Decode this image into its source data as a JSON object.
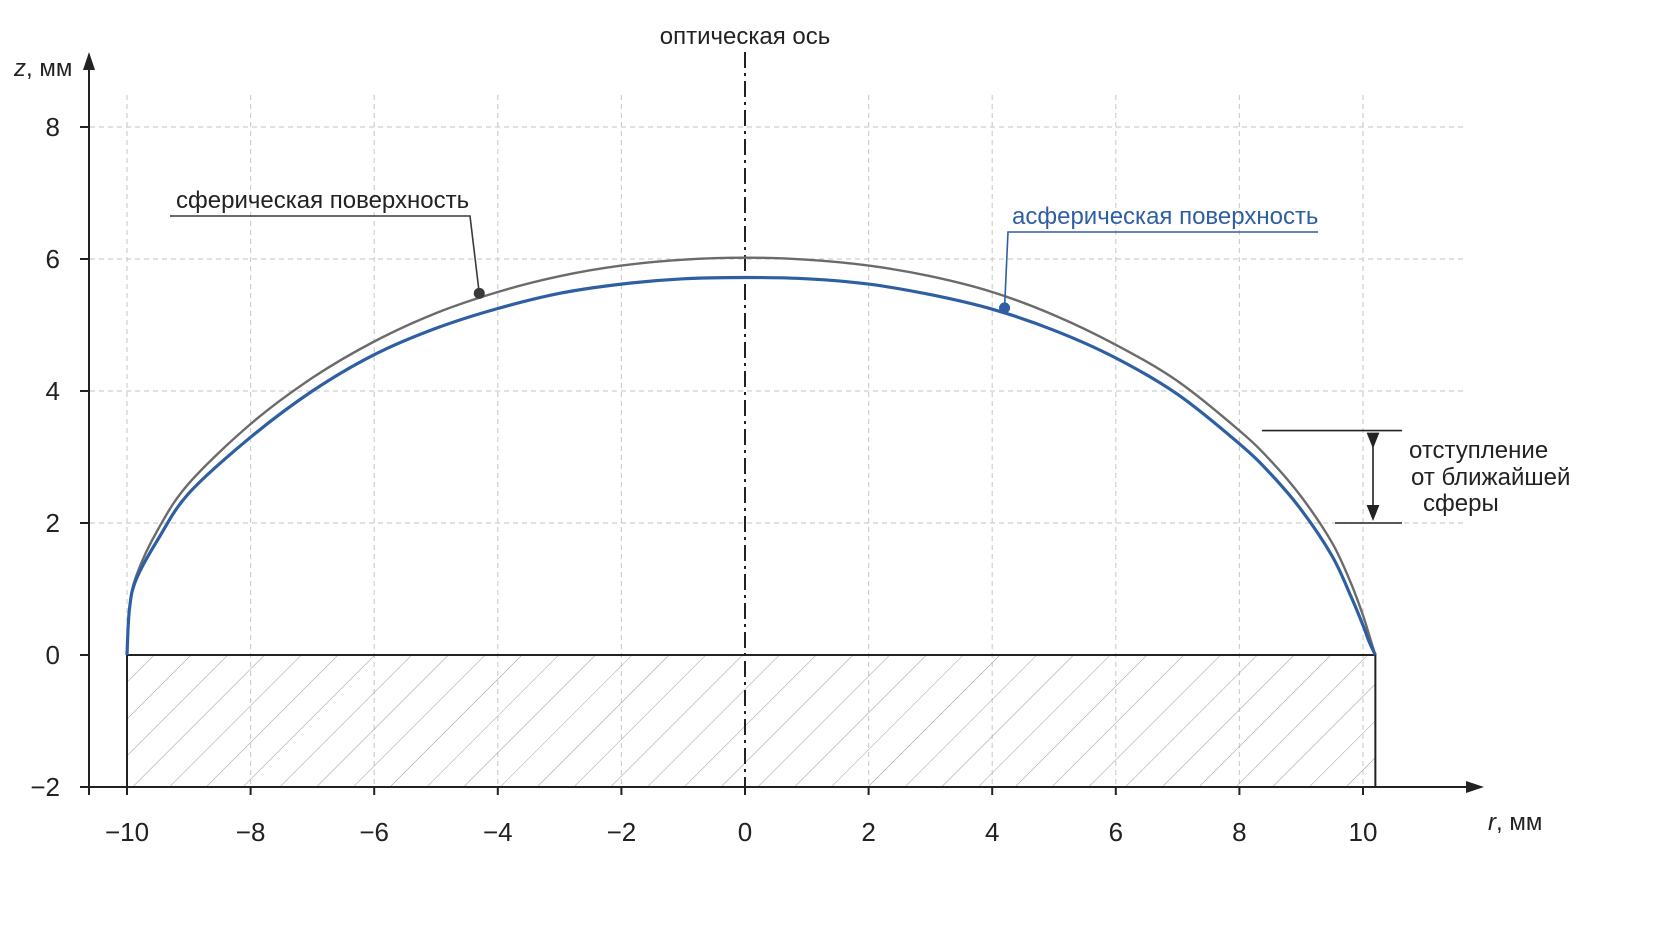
{
  "chart_data": {
    "type": "line",
    "xlabel_var": "r",
    "xlabel_unit": ", мм",
    "ylabel_var": "z",
    "ylabel_unit": ", мм",
    "xlim": [
      -10.4,
      11.6
    ],
    "ylim": [
      -2,
      9.2
    ],
    "grid": true,
    "x_ticks": [
      -10,
      -8,
      -6,
      -4,
      -2,
      0,
      2,
      4,
      6,
      8,
      10
    ],
    "y_ticks": [
      -2,
      0,
      2,
      4,
      6,
      8
    ],
    "x_tick_labels": [
      "−10",
      "−8",
      "−6",
      "−4",
      "−2",
      "0",
      "2",
      "4",
      "6",
      "8",
      "10"
    ],
    "y_tick_labels": [
      "−2",
      "0",
      "2",
      "4",
      "6",
      "8"
    ],
    "x_grid": [
      -10,
      -8,
      -6,
      -4,
      -2,
      2,
      4,
      6,
      8,
      10
    ],
    "y_grid": [
      2,
      4,
      6,
      8
    ],
    "optical_axis_label": "оптическая ось",
    "series": [
      {
        "name": "сферическая поверхность",
        "color": "#6b6b6b",
        "x": [
          -10,
          -9.96,
          -9.85,
          -9.5,
          -9,
          -8,
          -7,
          -6,
          -5,
          -4,
          -3,
          -2,
          -1,
          0,
          1,
          2,
          3,
          4,
          5,
          6,
          7,
          8,
          8.5,
          9,
          9.5,
          9.8,
          10,
          10.1,
          10.2
        ],
        "y": [
          0,
          0.7,
          1.2,
          1.9,
          2.6,
          3.5,
          4.2,
          4.75,
          5.18,
          5.5,
          5.74,
          5.9,
          5.99,
          6.02,
          5.99,
          5.9,
          5.74,
          5.5,
          5.15,
          4.7,
          4.15,
          3.4,
          2.95,
          2.4,
          1.7,
          1.1,
          0.6,
          0.3,
          0
        ]
      },
      {
        "name": "асферическая поверхность",
        "color": "#2e5fa3",
        "x": [
          -10,
          -9.96,
          -9.85,
          -9.5,
          -9,
          -8,
          -7,
          -6,
          -5,
          -4,
          -3,
          -2,
          -1,
          0,
          1,
          2,
          3,
          4,
          5,
          6,
          7,
          8,
          8.5,
          9,
          9.5,
          9.8,
          10,
          10.1,
          10.2
        ],
        "y": [
          0,
          0.7,
          1.15,
          1.75,
          2.45,
          3.3,
          4.0,
          4.55,
          4.95,
          5.25,
          5.48,
          5.62,
          5.7,
          5.72,
          5.7,
          5.62,
          5.46,
          5.24,
          4.92,
          4.5,
          3.95,
          3.2,
          2.75,
          2.2,
          1.5,
          0.9,
          0.45,
          0.2,
          0
        ]
      }
    ],
    "marked_points": [
      {
        "series": 0,
        "x": -4.3,
        "y": 5.48,
        "color": "#3a3a3a"
      },
      {
        "series": 1,
        "x": 4.2,
        "y": 5.26,
        "color": "#2e5fa3"
      }
    ],
    "hatched_region": {
      "x": [
        -10,
        10.2
      ],
      "y": [
        -2,
        0
      ]
    },
    "annotations": {
      "sphere_label": "сферическая поверхность",
      "asphere_label": "асферическая поверхность",
      "deviation_lines": [
        "отступление",
        "от ближайшей",
        "сферы"
      ],
      "deviation_range_y": [
        2.0,
        3.4
      ]
    }
  }
}
